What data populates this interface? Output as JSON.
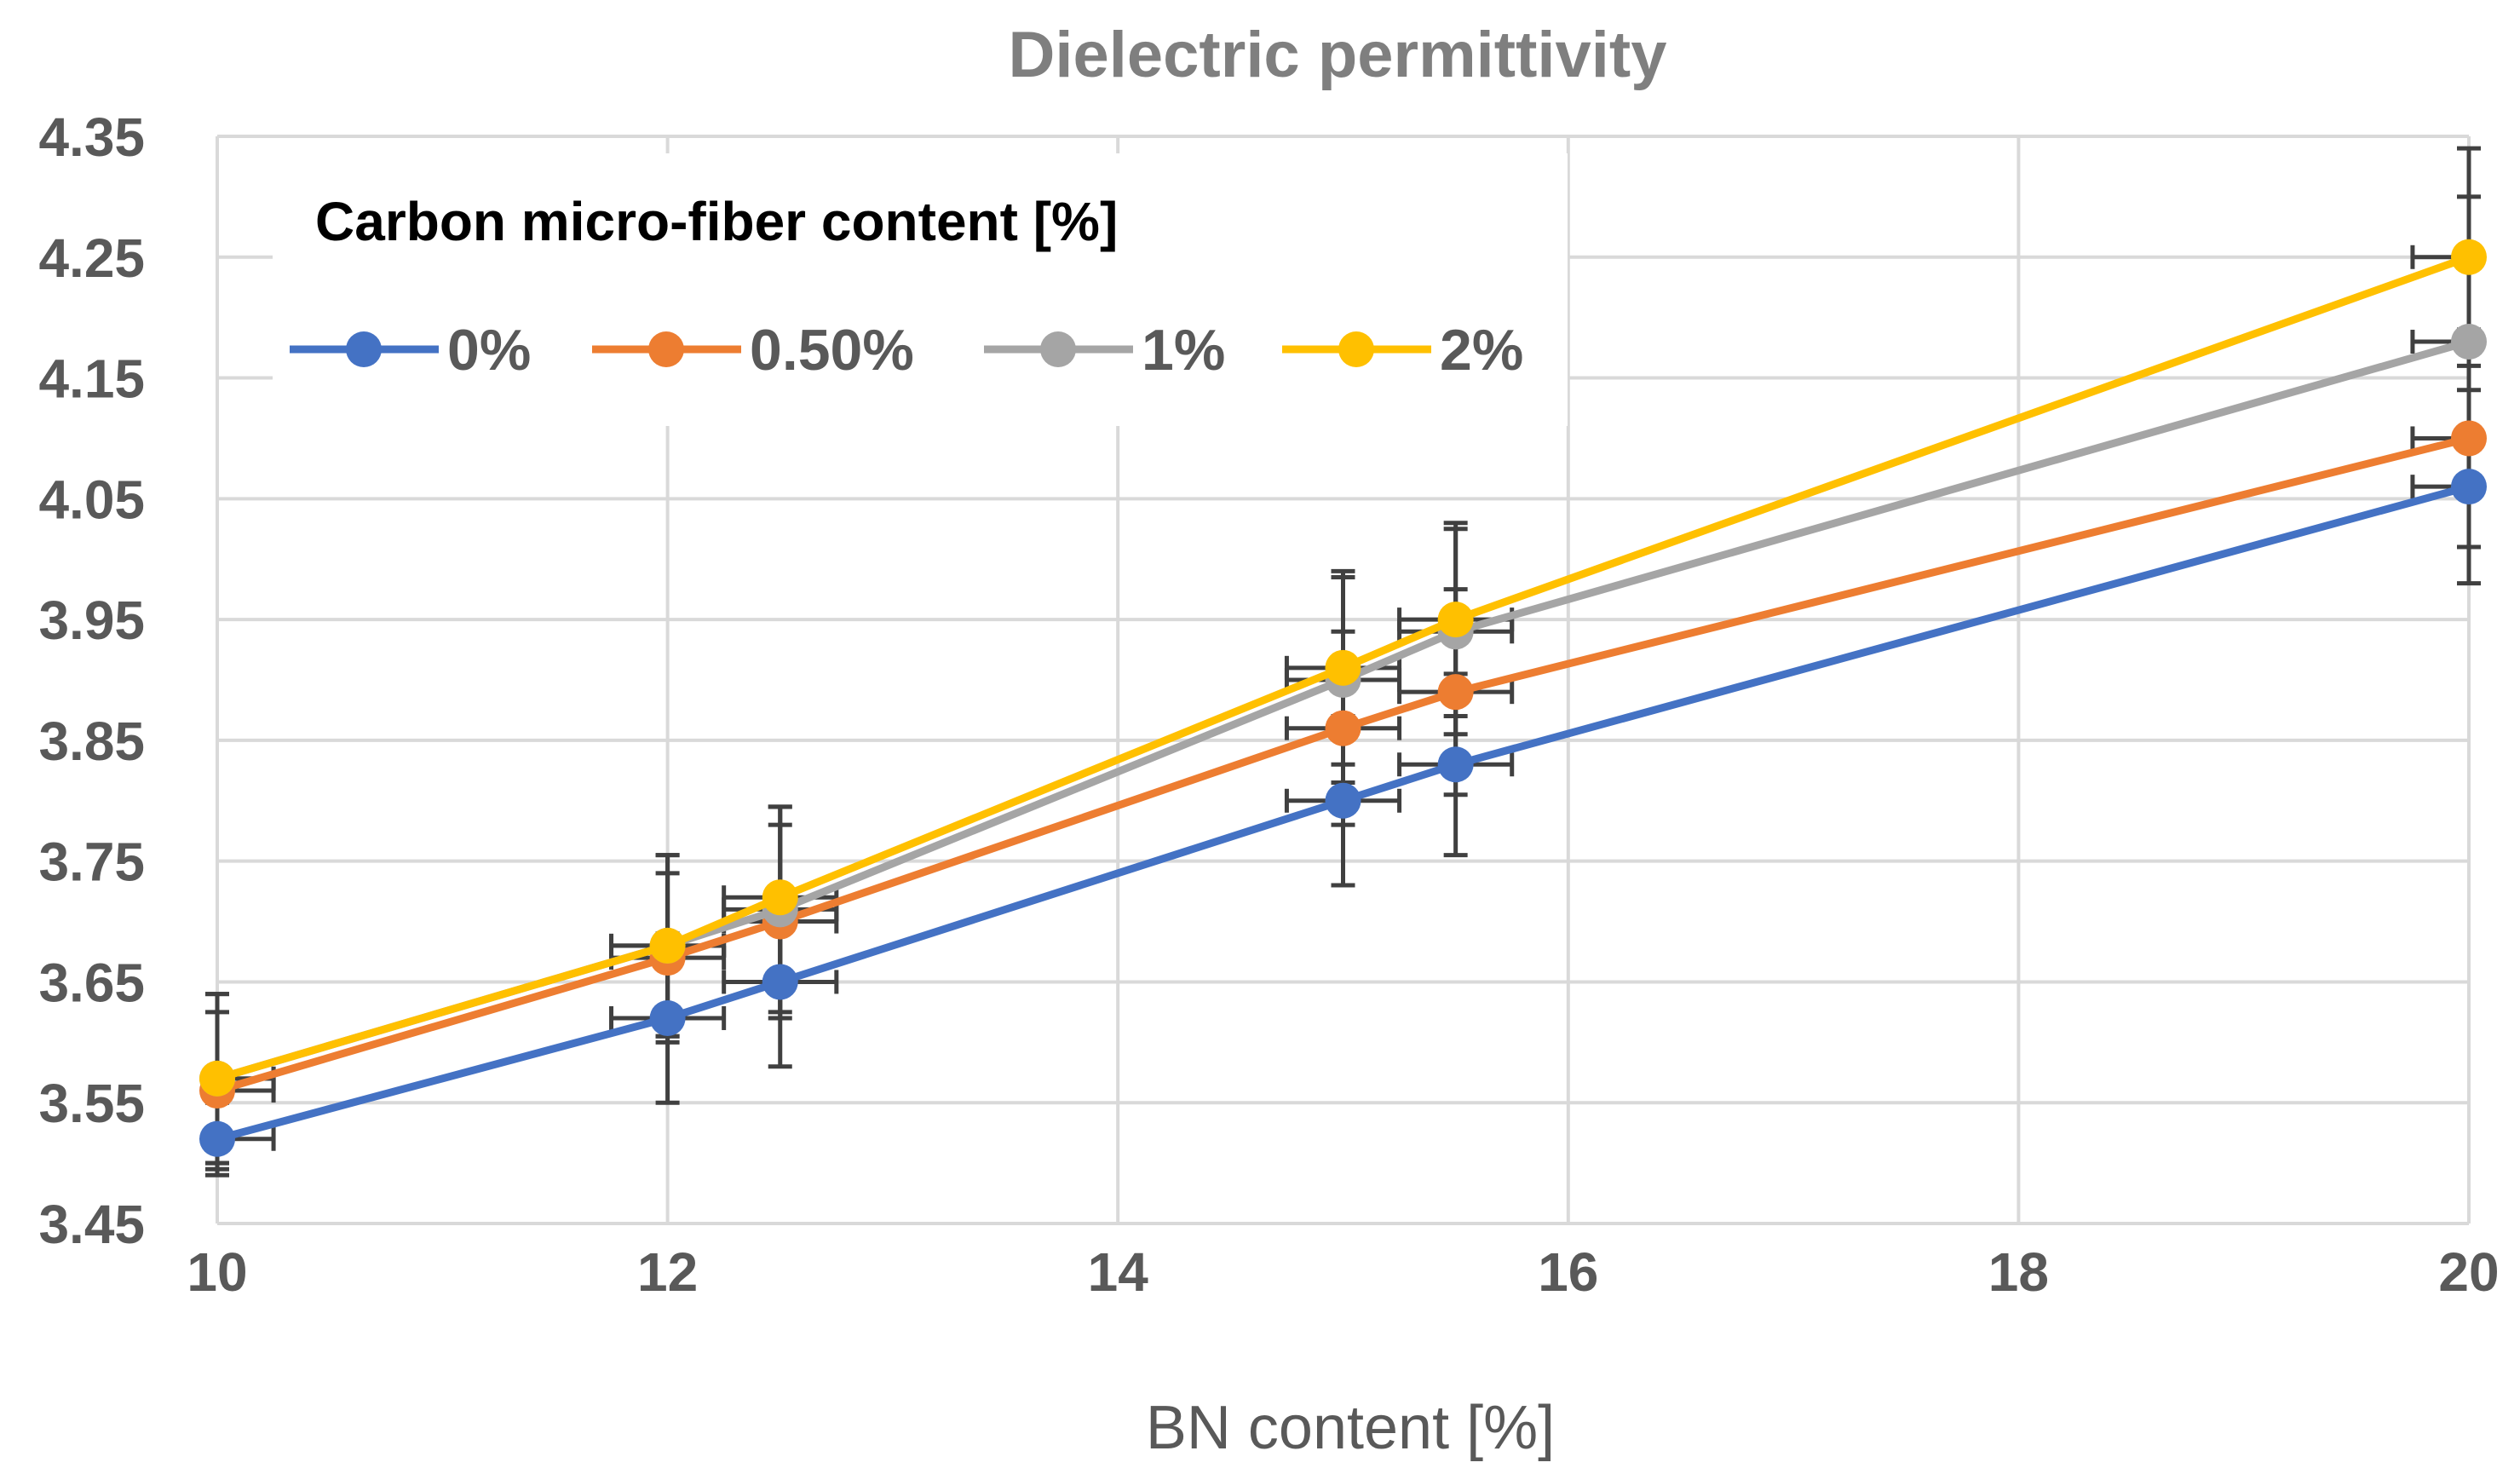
{
  "chart_data": {
    "type": "line",
    "title": "Dielectric  permittivity",
    "xlabel": "BN content [%]",
    "ylabel": "",
    "xlim": [
      10,
      20
    ],
    "ylim": [
      3.45,
      4.35
    ],
    "x_ticks": [
      10,
      12,
      14,
      16,
      18,
      20
    ],
    "y_ticks": [
      3.45,
      3.55,
      3.65,
      3.75,
      3.85,
      3.95,
      4.05,
      4.15,
      4.25,
      4.35
    ],
    "y_tick_labels": [
      "3.45",
      "3.55",
      "3.65",
      "3.75",
      "3.85",
      "3.95",
      "4.05",
      "4.15",
      "4.25",
      "4.35"
    ],
    "grid": true,
    "legend": {
      "title": "Carbon micro-fiber  content [%]",
      "placement": "top-left"
    },
    "x": [
      10,
      12,
      12.5,
      15,
      15.5,
      20
    ],
    "x_error": 0.25,
    "series": [
      {
        "name": "0%",
        "color": "#4472C4",
        "values": [
          3.52,
          3.62,
          3.65,
          3.8,
          3.83,
          4.06
        ],
        "y_error": [
          0.03,
          0.07,
          0.07,
          0.07,
          0.075,
          0.08
        ]
      },
      {
        "name": "0.50%",
        "color": "#ED7D31",
        "values": [
          3.56,
          3.67,
          3.7,
          3.86,
          3.89,
          4.1
        ],
        "y_error": [
          0.065,
          0.07,
          0.08,
          0.08,
          0.085,
          0.09
        ]
      },
      {
        "name": "1%",
        "color": "#A5A5A5",
        "values": [
          3.57,
          3.68,
          3.71,
          3.9,
          3.94,
          4.18
        ],
        "y_error": [
          0.07,
          0.075,
          0.085,
          0.085,
          0.085,
          0.12
        ]
      },
      {
        "name": "2%",
        "color": "#FFC000",
        "values": [
          3.57,
          3.68,
          3.72,
          3.91,
          3.95,
          4.25
        ],
        "y_error": [
          0.07,
          0.075,
          0.075,
          0.08,
          0.08,
          0.09
        ]
      }
    ]
  },
  "colors": {
    "grid": "#d9d9d9",
    "error_bar": "#404040",
    "tick_text": "#595959",
    "title": "#7f7f7f"
  }
}
